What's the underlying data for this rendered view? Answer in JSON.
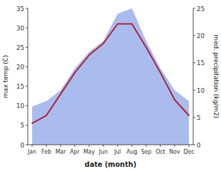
{
  "chart_data": {
    "type": "line",
    "xlabel": "date (month)",
    "ylabel": "max temp (C)",
    "y2label": "med. precipitation (kg/m2)",
    "categories": [
      "Jan",
      "Feb",
      "Mar",
      "Apr",
      "May",
      "Jun",
      "Jul",
      "Aug",
      "Sep",
      "Oct",
      "Nov",
      "Dec"
    ],
    "series": [
      {
        "type": "area",
        "color": "#aabbee",
        "axis": "y2",
        "values": [
          7,
          8,
          10,
          14,
          17,
          19,
          24,
          25,
          19,
          14,
          10,
          8
        ]
      },
      {
        "type": "line",
        "color": "#aa2233",
        "values": [
          5.5,
          7.5,
          13.0,
          18.5,
          23.0,
          26.0,
          31.0,
          31.0,
          25.0,
          18.5,
          11.5,
          7.5
        ]
      }
    ],
    "ylim": [
      0,
      35
    ],
    "yticks": [
      0,
      5,
      10,
      15,
      20,
      25,
      30,
      35
    ],
    "y2lim": [
      0,
      25
    ],
    "y2ticks": [
      0,
      5,
      10,
      15,
      20,
      25
    ],
    "grid": false
  }
}
